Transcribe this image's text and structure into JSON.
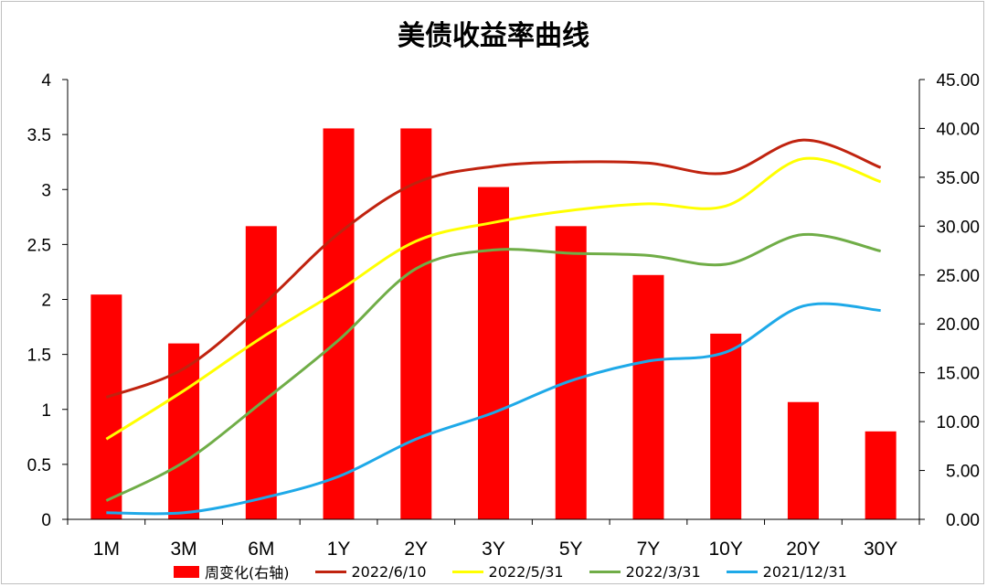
{
  "chart_data": {
    "type": "bar",
    "title": "美债收益率曲线",
    "categories": [
      "1M",
      "3M",
      "6M",
      "1Y",
      "2Y",
      "3Y",
      "5Y",
      "7Y",
      "10Y",
      "20Y",
      "30Y"
    ],
    "y_left": {
      "ticks": [
        "0",
        "0.5",
        "1",
        "1.5",
        "2",
        "2.5",
        "3",
        "3.5",
        "4"
      ],
      "ylim": [
        0,
        4
      ]
    },
    "y_right": {
      "ticks": [
        "0.00",
        "5.00",
        "10.00",
        "15.00",
        "20.00",
        "25.00",
        "30.00",
        "35.00",
        "40.00",
        "45.00"
      ],
      "ylim": [
        0,
        45
      ]
    },
    "bars": {
      "name": "周变化(右轴)",
      "axis": "right",
      "color": "#ff0000",
      "values": [
        23,
        18,
        30,
        40,
        40,
        34,
        30,
        25,
        19,
        12,
        9
      ]
    },
    "series": [
      {
        "name": "2022/6/10",
        "axis": "left",
        "color": "#c0230f",
        "values": [
          1.11,
          1.37,
          1.94,
          2.6,
          3.06,
          3.21,
          3.25,
          3.24,
          3.15,
          3.45,
          3.2
        ]
      },
      {
        "name": "2022/5/31",
        "axis": "left",
        "color": "#ffff00",
        "values": [
          0.73,
          1.17,
          1.65,
          2.08,
          2.53,
          2.7,
          2.81,
          2.87,
          2.85,
          3.28,
          3.07
        ]
      },
      {
        "name": "2022/3/31",
        "axis": "left",
        "color": "#70ad47",
        "values": [
          0.17,
          0.52,
          1.06,
          1.63,
          2.28,
          2.45,
          2.42,
          2.4,
          2.32,
          2.59,
          2.44
        ]
      },
      {
        "name": "2021/12/31",
        "axis": "left",
        "color": "#1ea9e8",
        "values": [
          0.06,
          0.06,
          0.19,
          0.39,
          0.73,
          0.97,
          1.26,
          1.44,
          1.52,
          1.94,
          1.9
        ]
      }
    ],
    "gridlines": false,
    "legend": "bottom"
  }
}
